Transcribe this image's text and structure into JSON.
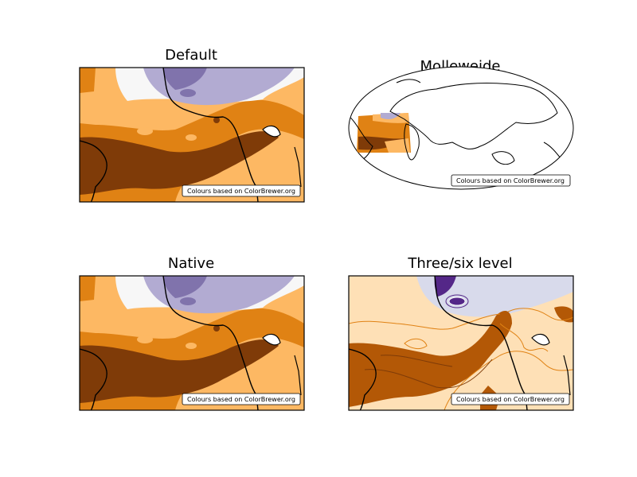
{
  "panels": {
    "default": {
      "title": "Default",
      "credit": "Colours based on ColorBrewer.org"
    },
    "molleweide": {
      "title": "Molleweide",
      "credit": "Colours based on ColorBrewer.org"
    },
    "native": {
      "title": "Native",
      "credit": "Colours based on ColorBrewer.org"
    },
    "three_six": {
      "title": "Three/six level",
      "credit": "Colours based on ColorBrewer.org"
    }
  },
  "colors": {
    "dark_brown": "#7f3b08",
    "brown": "#b35806",
    "orange": "#e08214",
    "light_orange": "#fdb863",
    "pale_orange": "#fee0b6",
    "white": "#f7f7f7",
    "pale_purple": "#d8daeb",
    "light_purple": "#b2abd2",
    "purple": "#8073ac",
    "dark_purple": "#542788"
  }
}
